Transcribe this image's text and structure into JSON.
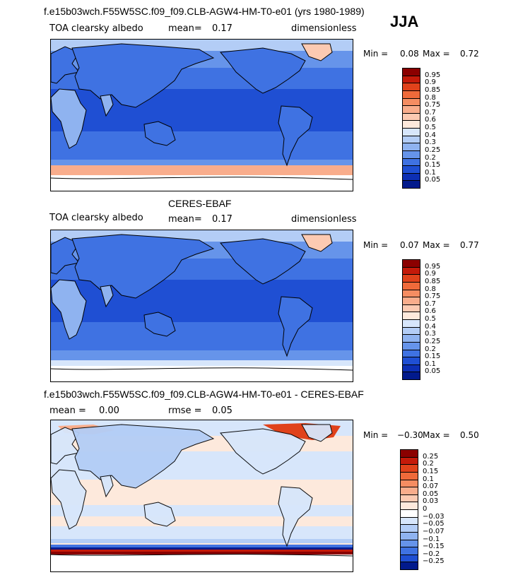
{
  "season": "JJA",
  "panels": [
    {
      "title": "f.e15b03wch.F55W5SC.f09_f09.CLB-AGW4-HM-T0-e01 (yrs 1980-1989)",
      "variable": "TOA clearsky albedo",
      "stat1_label": "mean=",
      "stat1_value": "0.17",
      "units": "dimensionless",
      "min_label": "Min =",
      "min_value": "0.08",
      "max_label": "Max =",
      "max_value": "0.72",
      "colorbar": {
        "labels": [
          "0.95",
          "0.9",
          "0.85",
          "0.8",
          "0.75",
          "0.7",
          "0.6",
          "0.5",
          "0.4",
          "0.3",
          "0.25",
          "0.2",
          "0.15",
          "0.1",
          "0.05"
        ],
        "colors": [
          "#8b0000",
          "#c41a0a",
          "#e0421b",
          "#ef6a3a",
          "#f58d62",
          "#f9ad8c",
          "#fccab2",
          "#fde9dc",
          "#d7e6fb",
          "#b3cdf6",
          "#8fb3f0",
          "#6694ea",
          "#3f72e2",
          "#1f4fd3",
          "#0d2fb4",
          "#021a8c"
        ]
      },
      "map_style": "model"
    },
    {
      "title": "CERES-EBAF",
      "variable": "TOA clearsky albedo",
      "stat1_label": "mean=",
      "stat1_value": "0.17",
      "units": "dimensionless",
      "min_label": "Min =",
      "min_value": "0.07",
      "max_label": "Max =",
      "max_value": "0.77",
      "colorbar": {
        "labels": [
          "0.95",
          "0.9",
          "0.85",
          "0.8",
          "0.75",
          "0.7",
          "0.6",
          "0.5",
          "0.4",
          "0.3",
          "0.25",
          "0.2",
          "0.15",
          "0.1",
          "0.05"
        ],
        "colors": [
          "#8b0000",
          "#c41a0a",
          "#e0421b",
          "#ef6a3a",
          "#f58d62",
          "#f9ad8c",
          "#fccab2",
          "#fde9dc",
          "#d7e6fb",
          "#b3cdf6",
          "#8fb3f0",
          "#6694ea",
          "#3f72e2",
          "#1f4fd3",
          "#0d2fb4",
          "#021a8c"
        ]
      },
      "map_style": "obs"
    },
    {
      "title": "f.e15b03wch.F55W5SC.f09_f09.CLB-AGW4-HM-T0-e01 - CERES-EBAF",
      "stat1_label": "mean =",
      "stat1_value": "0.00",
      "stat2_label": "rmse =",
      "stat2_value": "0.05",
      "min_label": "Min =",
      "min_value": "−0.30",
      "max_label": "Max =",
      "max_value": "0.50",
      "colorbar": {
        "labels": [
          "0.25",
          "0.2",
          "0.15",
          "0.1",
          "0.07",
          "0.05",
          "0.03",
          "0",
          "−0.03",
          "−0.05",
          "−0.07",
          "−0.1",
          "−0.15",
          "−0.2",
          "−0.25"
        ],
        "colors": [
          "#8b0000",
          "#c41a0a",
          "#e0421b",
          "#ef6a3a",
          "#f58d62",
          "#f9ad8c",
          "#fccab2",
          "#fde9dc",
          "#ffffff",
          "#d7e6fb",
          "#b3cdf6",
          "#8fb3f0",
          "#6694ea",
          "#3f72e2",
          "#1f4fd3",
          "#021a8c"
        ]
      },
      "map_style": "diff"
    }
  ]
}
